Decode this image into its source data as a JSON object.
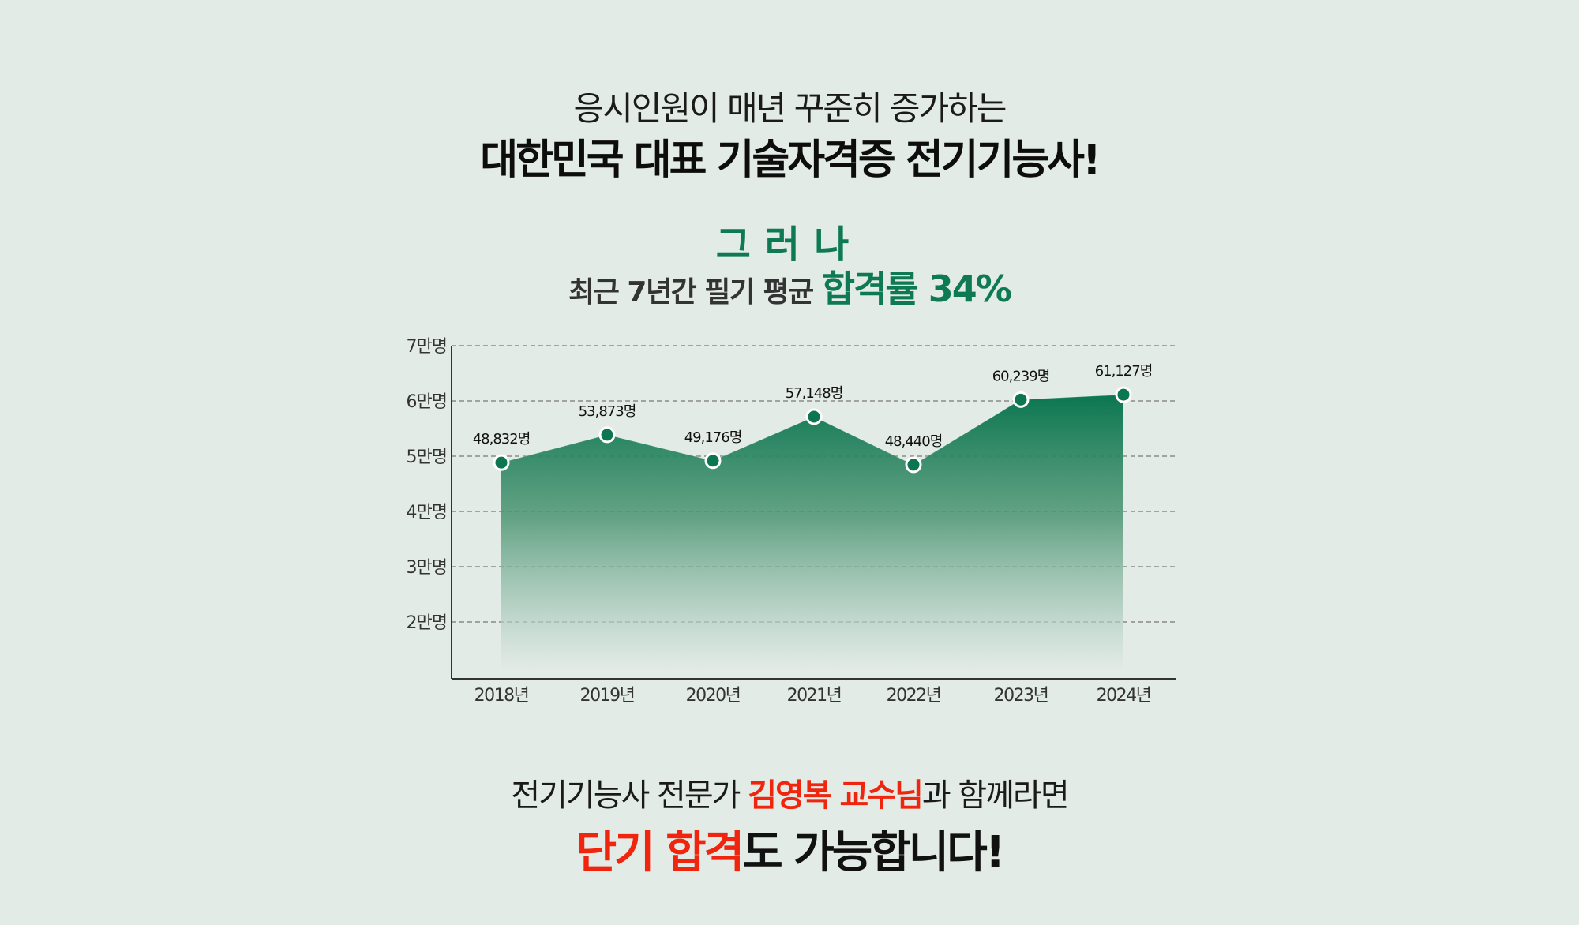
{
  "header": {
    "subtitle": "응시인원이 매년 꾸준히 증가하는",
    "title": "대한민국 대표 기술자격증 전기기능사!"
  },
  "transition": {
    "word": "그러나",
    "rate_prefix": "최근 7년간 필기 평균 ",
    "rate_highlight": "합격률 34%"
  },
  "footer": {
    "line1_prefix": "전기기능사 전문가 ",
    "line1_highlight": "김영복 교수님",
    "line1_suffix": "과 함께라면",
    "line2_highlight": "단기 합격",
    "line2_suffix": "도 가능합니다!"
  },
  "colors": {
    "background": "#e3ebe7",
    "accent_green": "#0e7a52",
    "accent_red": "#f0250d"
  },
  "chart_data": {
    "type": "area",
    "title": "",
    "xlabel": "",
    "ylabel": "",
    "categories": [
      "2018년",
      "2019년",
      "2020년",
      "2021년",
      "2022년",
      "2023년",
      "2024년"
    ],
    "series": [
      {
        "name": "응시인원",
        "values": [
          48832,
          53873,
          49176,
          57148,
          48440,
          60239,
          61127
        ],
        "labels": [
          "48,832명",
          "53,873명",
          "49,176명",
          "57,148명",
          "48,440명",
          "60,239명",
          "61,127명"
        ]
      }
    ],
    "yticks": [
      20000,
      30000,
      40000,
      50000,
      60000,
      70000
    ],
    "ytick_labels": [
      "2만명",
      "3만명",
      "4만명",
      "5만명",
      "6만명",
      "7만명"
    ],
    "ylim": [
      10000,
      70000
    ],
    "grid": "horizontal dashed",
    "legend": "none"
  }
}
